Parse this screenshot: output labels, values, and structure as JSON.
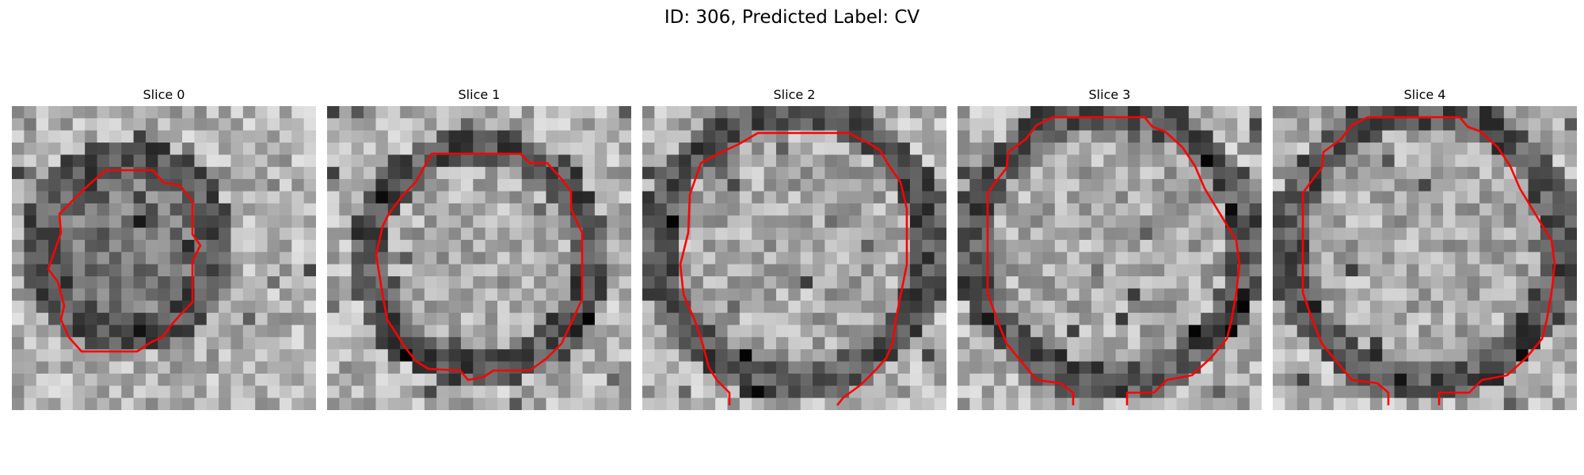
{
  "figure": {
    "title": "ID: 306, Predicted Label: CV"
  },
  "panels": [
    {
      "title": "Slice 0",
      "image_subject": "grayscale pixelated cross-section of a round object with a red closed contour outline",
      "contour_color": "#ff0000",
      "seed": 11
    },
    {
      "title": "Slice 1",
      "image_subject": "grayscale pixelated cross-section of a round object with a red closed contour outline",
      "contour_color": "#ff0000",
      "seed": 23
    },
    {
      "title": "Slice 2",
      "image_subject": "grayscale pixelated cross-section of a round object with a red contour outline open at the bottom",
      "contour_color": "#ff0000",
      "seed": 37
    },
    {
      "title": "Slice 3",
      "image_subject": "grayscale pixelated cross-section of a round object with a red contour outline open at the bottom",
      "contour_color": "#ff0000",
      "seed": 41
    },
    {
      "title": "Slice 4",
      "image_subject": "grayscale pixelated cross-section of a round object with a red contour outline open at the bottom",
      "contour_color": "#ff0000",
      "seed": 53
    }
  ]
}
